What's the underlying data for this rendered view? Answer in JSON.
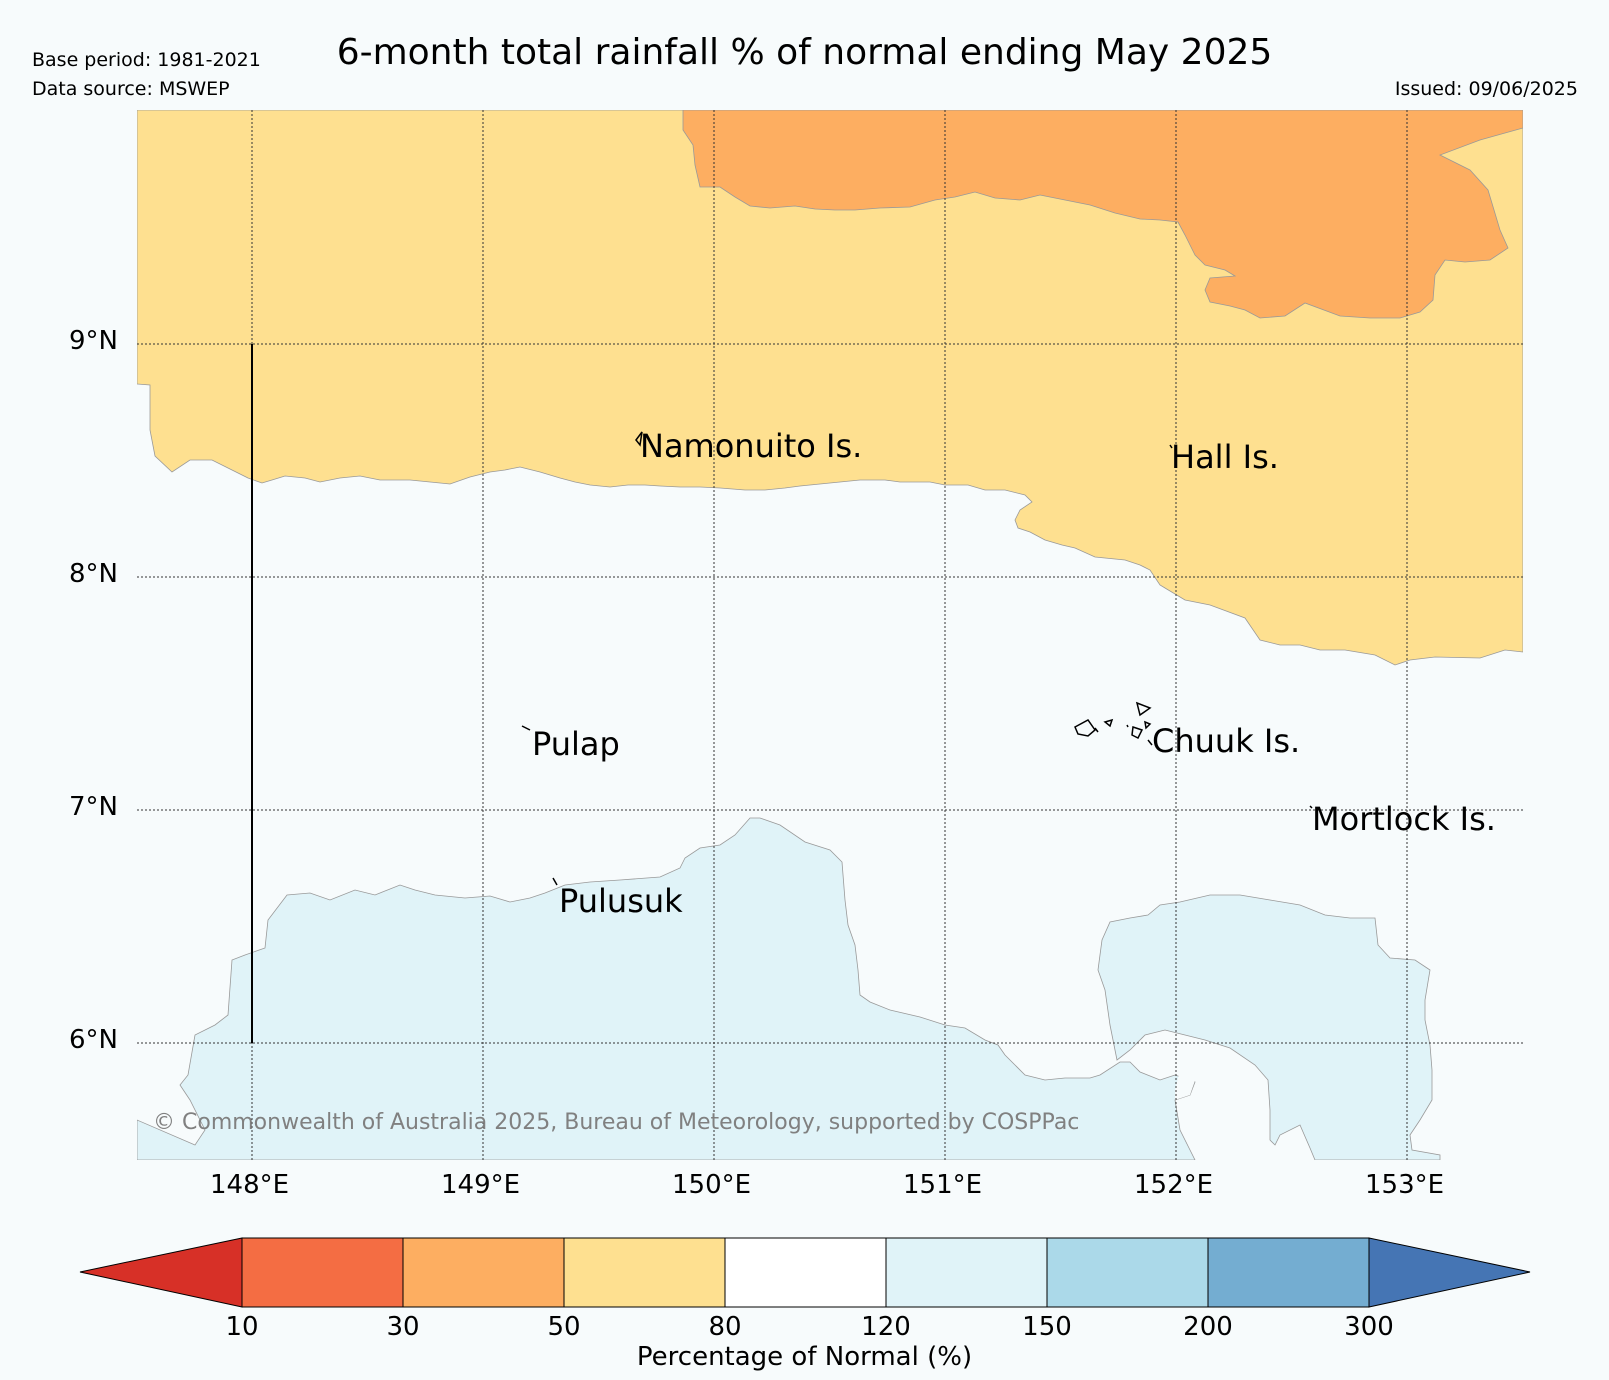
{
  "header": {
    "title": "6-month total rainfall % of normal ending May 2025",
    "base_period": "Base period: 1981-2021",
    "data_source": "Data source: MSWEP",
    "issued": "Issued: 09/06/2025"
  },
  "map": {
    "lat_labels": [
      "9°N",
      "8°N",
      "7°N",
      "6°N"
    ],
    "lon_labels": [
      "148°E",
      "149°E",
      "150°E",
      "151°E",
      "152°E",
      "153°E"
    ],
    "places": [
      "Namonuito Is.",
      "Hall Is.",
      "Pulap",
      "Chuuk Is.",
      "Mortlock Is.",
      "Pulusuk"
    ],
    "copyright": "© Commonwealth of Australia 2025, Bureau of Meteorology, supported by COSPPac",
    "region_categories": {
      "orange": "30-50",
      "yellow": "50-80",
      "white": "80-120",
      "light_blue": "120-150"
    }
  },
  "colorbar": {
    "title": "Percentage of Normal (%)",
    "ticks": [
      "10",
      "30",
      "50",
      "80",
      "120",
      "150",
      "200",
      "300"
    ],
    "colors": {
      "below_10": "#d73027",
      "10-30": "#f46d43",
      "30-50": "#fdae61",
      "50-80": "#fee090",
      "80-120": "#ffffff",
      "120-150": "#e0f3f8",
      "150-200": "#abd9e9",
      "200-300": "#74add1",
      "above_300": "#4575b4"
    }
  }
}
